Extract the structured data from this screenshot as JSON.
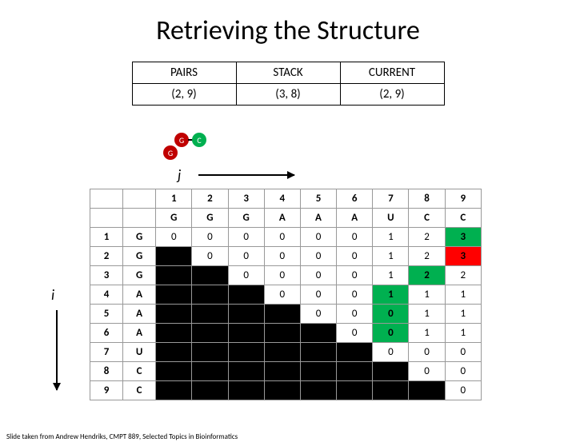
{
  "title": "Retrieving the Structure",
  "state": {
    "headers": [
      "PAIRS",
      "STACK",
      "CURRENT"
    ],
    "values": [
      "(2, 9)",
      "(3, 8)",
      "(2, 9)"
    ]
  },
  "nodes": {
    "g1": "G",
    "c": "C",
    "g2": "G"
  },
  "axis": {
    "j": "j",
    "i": "i"
  },
  "matrix": {
    "col_nums": [
      "1",
      "2",
      "3",
      "4",
      "5",
      "6",
      "7",
      "8",
      "9"
    ],
    "col_lets": [
      "G",
      "G",
      "G",
      "A",
      "A",
      "A",
      "U",
      "C",
      "C"
    ],
    "rows": [
      {
        "n": "1",
        "l": "G",
        "cells": [
          {
            "v": "0"
          },
          {
            "v": "0"
          },
          {
            "v": "0"
          },
          {
            "v": "0"
          },
          {
            "v": "0"
          },
          {
            "v": "0"
          },
          {
            "v": "1"
          },
          {
            "v": "2"
          },
          {
            "v": "3",
            "c": "grn"
          }
        ]
      },
      {
        "n": "2",
        "l": "G",
        "cells": [
          {
            "v": "",
            "c": "blk"
          },
          {
            "v": "0"
          },
          {
            "v": "0"
          },
          {
            "v": "0"
          },
          {
            "v": "0"
          },
          {
            "v": "0"
          },
          {
            "v": "1"
          },
          {
            "v": "2"
          },
          {
            "v": "3",
            "c": "red"
          }
        ]
      },
      {
        "n": "3",
        "l": "G",
        "cells": [
          {
            "v": "",
            "c": "blk"
          },
          {
            "v": "",
            "c": "blk"
          },
          {
            "v": "0"
          },
          {
            "v": "0"
          },
          {
            "v": "0"
          },
          {
            "v": "0"
          },
          {
            "v": "1"
          },
          {
            "v": "2",
            "c": "grn"
          },
          {
            "v": "2"
          }
        ]
      },
      {
        "n": "4",
        "l": "A",
        "cells": [
          {
            "v": "",
            "c": "blk"
          },
          {
            "v": "",
            "c": "blk"
          },
          {
            "v": "",
            "c": "blk"
          },
          {
            "v": "0"
          },
          {
            "v": "0"
          },
          {
            "v": "0"
          },
          {
            "v": "1",
            "c": "grn"
          },
          {
            "v": "1"
          },
          {
            "v": "1"
          }
        ]
      },
      {
        "n": "5",
        "l": "A",
        "cells": [
          {
            "v": "",
            "c": "blk"
          },
          {
            "v": "",
            "c": "blk"
          },
          {
            "v": "",
            "c": "blk"
          },
          {
            "v": "",
            "c": "blk"
          },
          {
            "v": "0"
          },
          {
            "v": "0"
          },
          {
            "v": "0",
            "c": "grn"
          },
          {
            "v": "1"
          },
          {
            "v": "1"
          }
        ]
      },
      {
        "n": "6",
        "l": "A",
        "cells": [
          {
            "v": "",
            "c": "blk"
          },
          {
            "v": "",
            "c": "blk"
          },
          {
            "v": "",
            "c": "blk"
          },
          {
            "v": "",
            "c": "blk"
          },
          {
            "v": "",
            "c": "blk"
          },
          {
            "v": "0"
          },
          {
            "v": "0",
            "c": "grn"
          },
          {
            "v": "1"
          },
          {
            "v": "1"
          }
        ]
      },
      {
        "n": "7",
        "l": "U",
        "cells": [
          {
            "v": "",
            "c": "blk"
          },
          {
            "v": "",
            "c": "blk"
          },
          {
            "v": "",
            "c": "blk"
          },
          {
            "v": "",
            "c": "blk"
          },
          {
            "v": "",
            "c": "blk"
          },
          {
            "v": "",
            "c": "blk"
          },
          {
            "v": "0"
          },
          {
            "v": "0"
          },
          {
            "v": "0"
          }
        ]
      },
      {
        "n": "8",
        "l": "C",
        "cells": [
          {
            "v": "",
            "c": "blk"
          },
          {
            "v": "",
            "c": "blk"
          },
          {
            "v": "",
            "c": "blk"
          },
          {
            "v": "",
            "c": "blk"
          },
          {
            "v": "",
            "c": "blk"
          },
          {
            "v": "",
            "c": "blk"
          },
          {
            "v": "",
            "c": "blk"
          },
          {
            "v": "0"
          },
          {
            "v": "0"
          }
        ]
      },
      {
        "n": "9",
        "l": "C",
        "cells": [
          {
            "v": "",
            "c": "blk"
          },
          {
            "v": "",
            "c": "blk"
          },
          {
            "v": "",
            "c": "blk"
          },
          {
            "v": "",
            "c": "blk"
          },
          {
            "v": "",
            "c": "blk"
          },
          {
            "v": "",
            "c": "blk"
          },
          {
            "v": "",
            "c": "blk"
          },
          {
            "v": "",
            "c": "blk"
          },
          {
            "v": "0"
          }
        ]
      }
    ]
  },
  "credit": "Slide taken from Andrew Hendriks, CMPT 889, Selected Topics in Bioinformatics"
}
